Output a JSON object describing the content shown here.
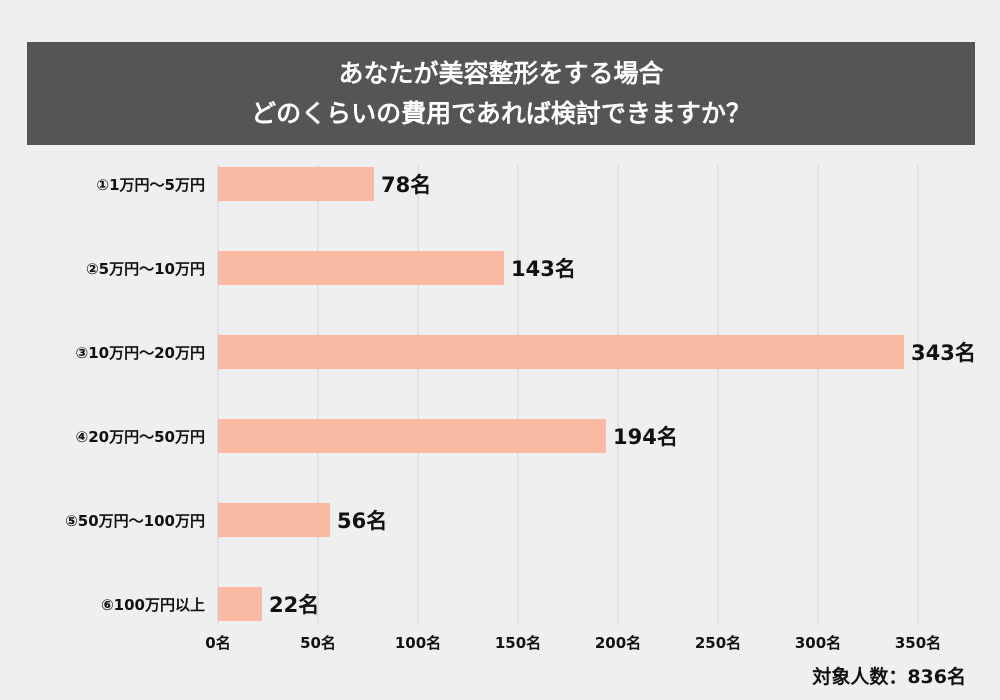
{
  "chart_data": {
    "type": "bar",
    "orientation": "horizontal",
    "title": [
      "あなたが美容整形をする場合",
      "どのくらいの費用であれば検討できますか？"
    ],
    "categories": [
      "①1万円～5万円",
      "②5万円～10万円",
      "③10万円～20万円",
      "④20万円～50万円",
      "⑤50万円～100万円",
      "⑥100万円以上"
    ],
    "values": [
      78,
      143,
      343,
      194,
      56,
      22
    ],
    "value_suffix": "名",
    "xlim": [
      0,
      350
    ],
    "xticks": [
      0,
      50,
      100,
      150,
      200,
      250,
      300,
      350
    ],
    "xtick_labels": [
      "0名",
      "50名",
      "100名",
      "150名",
      "200名",
      "250名",
      "300名",
      "350名"
    ],
    "grid": true,
    "bar_color": "#f9b9a2",
    "total_label": "対象人数：836名"
  }
}
